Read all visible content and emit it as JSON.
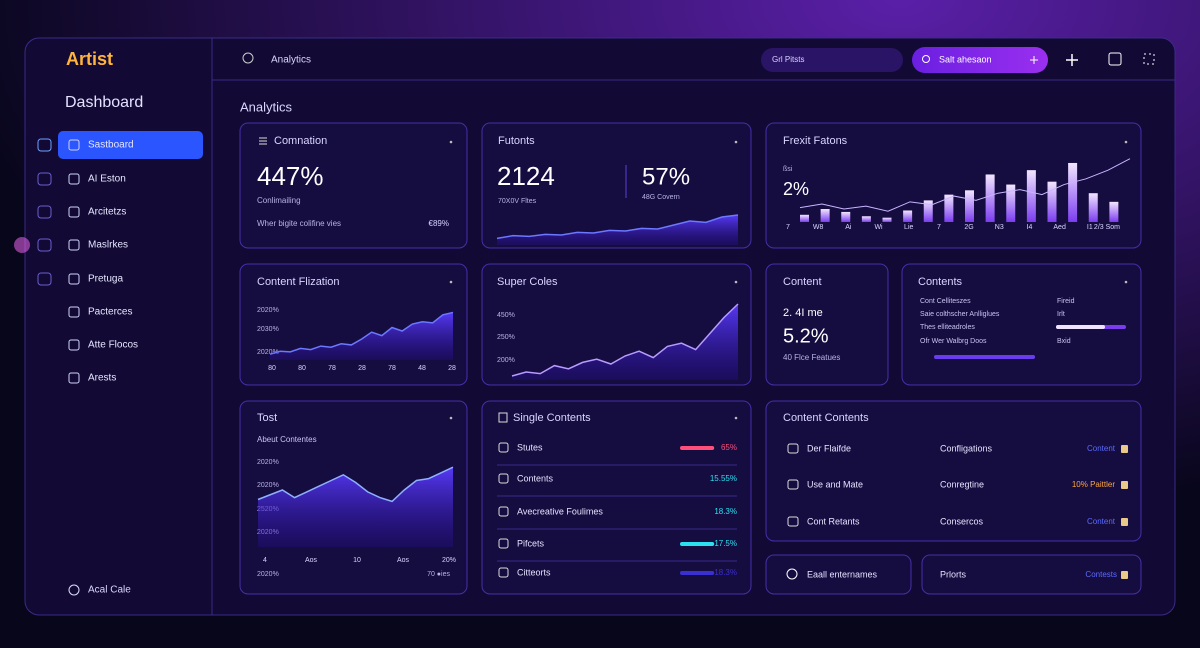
{
  "sidebar": {
    "logo": "Artist",
    "title": "Dashboard",
    "nav": [
      "Sastboard",
      "AI Eston",
      "Arcitetzs",
      "Maslrkes",
      "Pretuga",
      "Pacterces",
      "Atte Flocos",
      "Arests"
    ],
    "footer": "Acal Cale"
  },
  "topbar": {
    "search": "Analytics",
    "filter": "Grl Pitsts",
    "button": "Salt ahesaon"
  },
  "page_title": "Analytics",
  "cards": {
    "comnation": {
      "title": "Comnation",
      "value": "447%",
      "subtitle": "Conlimailing",
      "note": "Wher bigite colifine vies",
      "note_value": "€89%"
    },
    "futonts": {
      "title": "Futonts",
      "value": "2124",
      "subtitle": "70X0V Fltes",
      "value2": "57%",
      "subtitle2": "48G Covern",
      "chart": {
        "values": [
          10,
          14,
          13,
          16,
          15,
          19,
          18,
          22,
          21,
          25,
          24,
          30,
          36,
          34,
          42,
          45
        ],
        "ylim": [
          0,
          60
        ]
      }
    },
    "frexit": {
      "title": "Frexit Fatons",
      "small": "ßsi",
      "value": "2%",
      "x_labels": [
        "7",
        "W8",
        "Ai",
        "Wi",
        "Lie",
        "7",
        "2G",
        "N3",
        "I4",
        "Aed",
        "I1",
        "2/3 Som"
      ],
      "bars": {
        "values": [
          10,
          18,
          14,
          8,
          6,
          16,
          30,
          38,
          44,
          66,
          52,
          72,
          56,
          82,
          40,
          28
        ],
        "ylim": [
          0,
          100
        ]
      },
      "line": {
        "values": [
          20,
          25,
          18,
          22,
          15,
          28,
          24,
          36,
          30,
          40,
          45,
          38,
          52,
          60,
          72,
          88
        ],
        "ylim": [
          0,
          100
        ]
      }
    },
    "flization": {
      "title": "Content Flization",
      "y_labels": [
        "2020%",
        "2030%",
        "2020%"
      ],
      "x_labels": [
        "80",
        "80",
        "78",
        "28",
        "78",
        "48",
        "28"
      ],
      "chart": {
        "values": [
          10,
          15,
          14,
          20,
          18,
          24,
          22,
          28,
          26,
          36,
          48,
          42,
          56,
          50,
          62,
          66,
          64,
          78,
          82
        ],
        "ylim": [
          0,
          100
        ]
      }
    },
    "super": {
      "title": "Super Coles",
      "y_labels": [
        "450%",
        "250%",
        "200%"
      ],
      "chart": {
        "values": [
          5,
          10,
          8,
          18,
          14,
          22,
          26,
          20,
          30,
          36,
          28,
          42,
          46,
          38,
          58,
          78,
          95
        ],
        "ylim": [
          0,
          100
        ]
      }
    },
    "content": {
      "title": "Content",
      "line1": "2. 4I me",
      "value": "5.2%",
      "footer": "40 Flce Featues"
    },
    "contents": {
      "title": "Contents",
      "rows": [
        "Cont Celliteszes",
        "Saie colthscher Anlliglues",
        "Thes elliteadroles",
        "Ofr Wer Walbrg Doos"
      ],
      "right": [
        "Fireid",
        "Irlt",
        "Bxid"
      ],
      "bar_left": 100,
      "bar_right": 70
    },
    "tost": {
      "title": "Tost",
      "subtitle": "Abeut Contentes",
      "y_labels": [
        "2020%",
        "2020%",
        "2520%",
        "2020%"
      ],
      "x_labels": [
        "4",
        "Aos",
        "10",
        "Aos",
        "20%"
      ],
      "footer_left": "2020%",
      "footer_right": "70 ●ies",
      "chart": {
        "values": [
          50,
          55,
          60,
          52,
          58,
          64,
          70,
          76,
          68,
          58,
          52,
          48,
          60,
          70,
          72,
          78,
          84
        ],
        "ylim": [
          0,
          100
        ]
      }
    },
    "single": {
      "title": "Single Contents",
      "rows": [
        {
          "label": "Stutes",
          "value": "65%",
          "bar": 95,
          "color": "#ff4f7a"
        },
        {
          "label": "Contents",
          "value": "15.55%"
        },
        {
          "label": "Avecreative Foulimes",
          "value": "18.3%"
        },
        {
          "label": "Pifcets",
          "value": "17.5%",
          "bar": 95,
          "color": "#2de0f0"
        },
        {
          "label": "Citteorts",
          "value": "18.3%",
          "bar": 95,
          "color": "#3a2fd0"
        }
      ]
    },
    "table": {
      "title": "Content Contents",
      "rows": [
        [
          "Der Flaifde",
          "Confligations",
          "Content"
        ],
        [
          "Use and Mate",
          "Conregtine",
          "10% Paittler"
        ],
        [
          "Cont Retants",
          "Consercos",
          "Content"
        ]
      ]
    },
    "eaall": {
      "title": "Eaall enternames"
    },
    "prlorts": {
      "title": "Prlorts",
      "link": "Contests"
    }
  }
}
